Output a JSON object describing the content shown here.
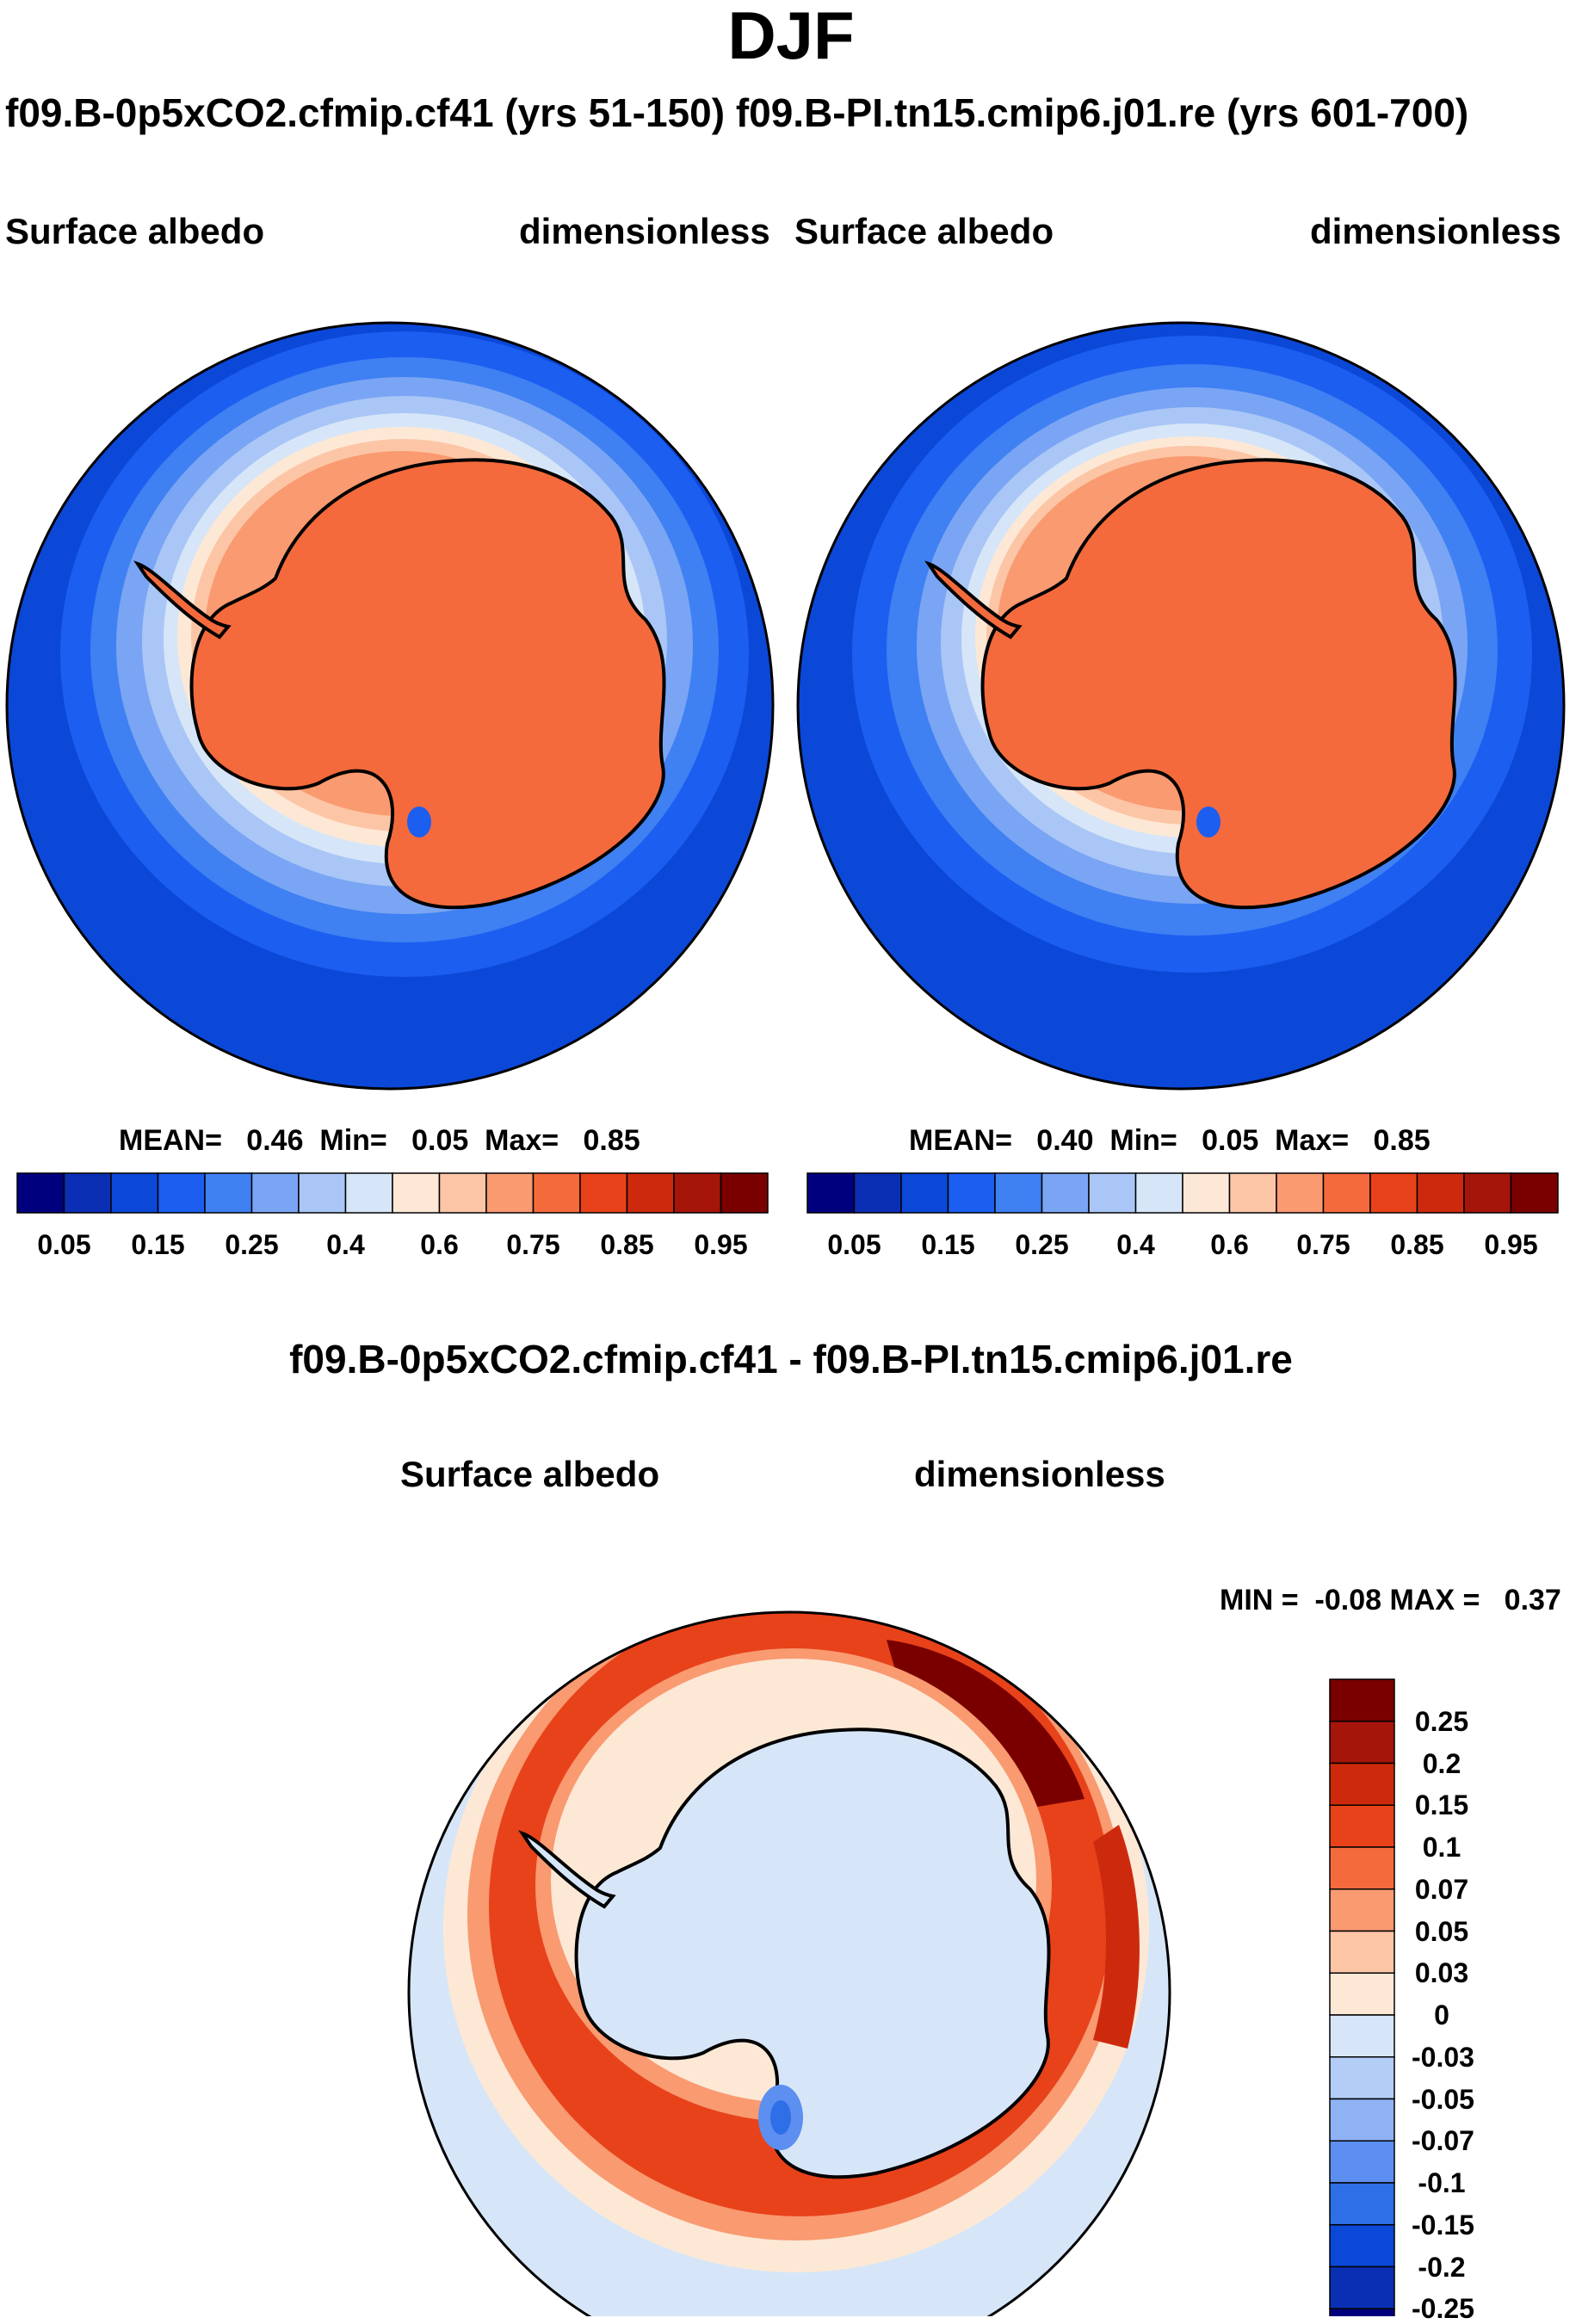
{
  "figure": {
    "season": "DJF",
    "case_titles": "f09.B-0p5xCO2.cfmip.cf41 (yrs 51-150) f09.B-PI.tn15.cmip6.j01.re (yrs 601-700)"
  },
  "panels": [
    {
      "variable": "Surface albedo",
      "units": "dimensionless",
      "stats": "MEAN=   0.46  Min=   0.05  Max=   0.85"
    },
    {
      "variable": "Surface albedo",
      "units": "dimensionless",
      "stats": "MEAN=   0.40  Min=   0.05  Max=   0.85"
    }
  ],
  "colorbar": {
    "ticks": [
      "0.05",
      "0.15",
      "0.25",
      "0.4",
      "0.6",
      "0.75",
      "0.85",
      "0.95"
    ],
    "colors": [
      "#00007f",
      "#0a2fb4",
      "#0b48d8",
      "#1c5ef0",
      "#3f80f2",
      "#7aa5f4",
      "#a9c6f6",
      "#d6e6f8",
      "#fde8d6",
      "#fcc6a6",
      "#f99a70",
      "#f46a3c",
      "#e8421a",
      "#cd2a0d",
      "#a5150a",
      "#7a0000"
    ]
  },
  "diff": {
    "title": "f09.B-0p5xCO2.cfmip.cf41 - f09.B-PI.tn15.cmip6.j01.re",
    "variable": "Surface albedo",
    "units": "dimensionless",
    "minmax": "MIN =  -0.08 MAX =   0.37",
    "ticks": [
      "0.25",
      "0.2",
      "0.15",
      "0.1",
      "0.07",
      "0.05",
      "0.03",
      "0",
      "-0.03",
      "-0.05",
      "-0.07",
      "-0.1",
      "-0.15",
      "-0.2",
      "-0.25"
    ],
    "colors": [
      "#7a0000",
      "#a5150a",
      "#cd2a0d",
      "#e8421a",
      "#f46a3c",
      "#f99a70",
      "#fcc6a6",
      "#fde8d6",
      "#d6e6f8",
      "#b3cdf6",
      "#8fb2f4",
      "#5d8ff0",
      "#2e6ee6",
      "#0b48d8",
      "#0a2fb4",
      "#00007f"
    ]
  },
  "chart_data": {
    "type": "heatmap",
    "title": "DJF",
    "projection": "south polar stereographic",
    "panels": [
      {
        "name": "f09.B-0p5xCO2.cfmip.cf41 (yrs 51-150)",
        "variable": "Surface albedo",
        "units": "dimensionless",
        "mean": 0.46,
        "min": 0.05,
        "max": 0.85
      },
      {
        "name": "f09.B-PI.tn15.cmip6.j01.re (yrs 601-700)",
        "variable": "Surface albedo",
        "units": "dimensionless",
        "mean": 0.4,
        "min": 0.05,
        "max": 0.85
      },
      {
        "name": "f09.B-0p5xCO2.cfmip.cf41 - f09.B-PI.tn15.cmip6.j01.re",
        "variable": "Surface albedo",
        "units": "dimensionless",
        "min": -0.08,
        "max": 0.37
      }
    ],
    "colorbar_levels": [
      0.05,
      0.15,
      0.25,
      0.4,
      0.6,
      0.75,
      0.85,
      0.95
    ],
    "diff_levels": [
      0.25,
      0.2,
      0.15,
      0.1,
      0.07,
      0.05,
      0.03,
      0,
      -0.03,
      -0.05,
      -0.07,
      -0.1,
      -0.15,
      -0.2,
      -0.25
    ]
  }
}
